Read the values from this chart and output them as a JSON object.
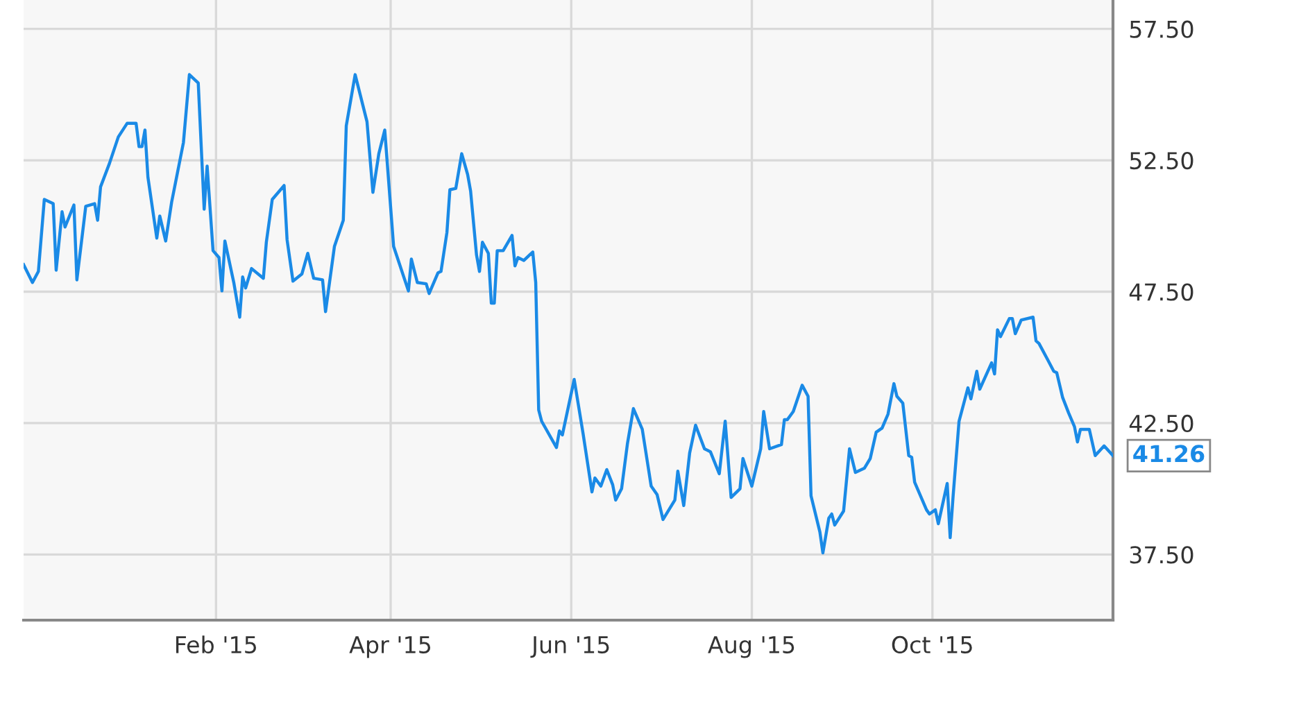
{
  "chart_data": {
    "type": "line",
    "x": [
      "2014-11-28",
      "2014-12-01",
      "2014-12-03",
      "2014-12-05",
      "2014-12-08",
      "2014-12-09",
      "2014-12-11",
      "2014-12-12",
      "2014-12-15",
      "2014-12-16",
      "2014-12-19",
      "2014-12-22",
      "2014-12-23",
      "2014-12-24",
      "2014-12-27",
      "2014-12-30",
      "2015-01-02",
      "2015-01-05",
      "2015-01-06",
      "2015-01-07",
      "2015-01-08",
      "2015-01-09",
      "2015-01-12",
      "2015-01-13",
      "2015-01-15",
      "2015-01-17",
      "2015-01-21",
      "2015-01-23",
      "2015-01-26",
      "2015-01-28",
      "2015-01-29",
      "2015-01-31",
      "2015-02-02",
      "2015-02-03",
      "2015-02-04",
      "2015-02-07",
      "2015-02-09",
      "2015-02-10",
      "2015-02-11",
      "2015-02-13",
      "2015-02-17",
      "2015-02-18",
      "2015-02-20",
      "2015-02-24",
      "2015-02-25",
      "2015-02-27",
      "2015-03-02",
      "2015-03-04",
      "2015-03-06",
      "2015-03-09",
      "2015-03-10",
      "2015-03-13",
      "2015-03-16",
      "2015-03-17",
      "2015-03-20",
      "2015-03-24",
      "2015-03-26",
      "2015-03-28",
      "2015-03-30",
      "2015-04-02",
      "2015-04-07",
      "2015-04-08",
      "2015-04-10",
      "2015-04-13",
      "2015-04-14",
      "2015-04-17",
      "2015-04-18",
      "2015-04-20",
      "2015-04-21",
      "2015-04-23",
      "2015-04-25",
      "2015-04-27",
      "2015-04-28",
      "2015-04-30",
      "2015-05-01",
      "2015-05-02",
      "2015-05-04",
      "2015-05-05",
      "2015-05-06",
      "2015-05-07",
      "2015-05-09",
      "2015-05-12",
      "2015-05-13",
      "2015-05-14",
      "2015-05-16",
      "2015-05-19",
      "2015-05-20",
      "2015-05-21",
      "2015-05-22",
      "2015-05-27",
      "2015-05-28",
      "2015-05-29",
      "2015-06-02",
      "2015-06-05",
      "2015-06-08",
      "2015-06-09",
      "2015-06-11",
      "2015-06-13",
      "2015-06-15",
      "2015-06-16",
      "2015-06-18",
      "2015-06-20",
      "2015-06-22",
      "2015-06-25",
      "2015-06-28",
      "2015-06-30",
      "2015-07-02",
      "2015-07-04",
      "2015-07-06",
      "2015-07-07",
      "2015-07-09",
      "2015-07-11",
      "2015-07-13",
      "2015-07-16",
      "2015-07-18",
      "2015-07-21",
      "2015-07-23",
      "2015-07-25",
      "2015-07-28",
      "2015-07-29",
      "2015-08-01",
      "2015-08-04",
      "2015-08-05",
      "2015-08-07",
      "2015-08-11",
      "2015-08-12",
      "2015-08-13",
      "2015-08-15",
      "2015-08-18",
      "2015-08-20",
      "2015-08-21",
      "2015-08-24",
      "2015-08-25",
      "2015-08-27",
      "2015-08-28",
      "2015-08-29",
      "2015-09-01",
      "2015-09-03",
      "2015-09-05",
      "2015-09-08",
      "2015-09-10",
      "2015-09-12",
      "2015-09-14",
      "2015-09-16",
      "2015-09-18",
      "2015-09-19",
      "2015-09-21",
      "2015-09-23",
      "2015-09-24",
      "2015-09-25",
      "2015-09-29",
      "2015-09-30",
      "2015-10-02",
      "2015-10-03",
      "2015-10-06",
      "2015-10-07",
      "2015-10-08",
      "2015-10-10",
      "2015-10-13",
      "2015-10-14",
      "2015-10-16",
      "2015-10-17",
      "2015-10-21",
      "2015-10-22",
      "2015-10-23",
      "2015-10-24",
      "2015-10-27",
      "2015-10-28",
      "2015-10-29",
      "2015-10-31",
      "2015-11-04",
      "2015-11-05",
      "2015-11-06",
      "2015-11-09",
      "2015-11-11",
      "2015-11-12",
      "2015-11-14",
      "2015-11-16",
      "2015-11-18",
      "2015-11-19",
      "2015-11-20",
      "2015-11-23",
      "2015-11-25",
      "2015-11-28",
      "2015-12-01"
    ],
    "series": [
      {
        "color": "#1a8ae6",
        "values": [
          48.53,
          47.85,
          48.27,
          51.01,
          50.85,
          48.32,
          50.54,
          49.96,
          50.8,
          47.95,
          50.75,
          50.85,
          50.22,
          51.49,
          52.38,
          53.39,
          53.91,
          53.91,
          53.02,
          53.02,
          53.65,
          51.86,
          49.54,
          50.38,
          49.43,
          50.9,
          53.18,
          55.76,
          55.44,
          50.64,
          52.28,
          49.06,
          48.8,
          47.53,
          49.43,
          47.85,
          46.53,
          48.06,
          47.64,
          48.38,
          48.01,
          49.38,
          51.01,
          51.54,
          49.48,
          47.9,
          48.17,
          48.96,
          48.01,
          47.95,
          46.74,
          49.22,
          50.22,
          53.81,
          55.76,
          53.97,
          51.28,
          52.75,
          53.65,
          49.22,
          47.53,
          48.74,
          47.85,
          47.8,
          47.43,
          48.22,
          48.27,
          49.75,
          51.38,
          51.43,
          52.75,
          51.96,
          51.33,
          48.9,
          48.27,
          49.38,
          48.96,
          47.06,
          47.06,
          49.06,
          49.06,
          49.64,
          48.48,
          48.8,
          48.69,
          49.01,
          47.85,
          43.0,
          42.57,
          41.57,
          42.2,
          42.05,
          44.16,
          42.1,
          39.88,
          40.41,
          40.1,
          40.73,
          40.15,
          39.57,
          40.0,
          41.73,
          43.05,
          42.26,
          40.1,
          39.78,
          38.83,
          39.2,
          39.57,
          40.67,
          39.36,
          41.36,
          42.42,
          41.52,
          41.41,
          40.57,
          42.57,
          39.67,
          40.0,
          41.15,
          40.1,
          41.52,
          42.94,
          41.52,
          41.68,
          42.63,
          42.63,
          42.94,
          43.94,
          43.52,
          39.73,
          38.35,
          37.56,
          38.88,
          39.04,
          38.62,
          39.15,
          41.52,
          40.62,
          40.78,
          41.15,
          42.15,
          42.31,
          42.84,
          44.0,
          43.52,
          43.26,
          41.26,
          41.2,
          40.25,
          39.2,
          39.04,
          39.2,
          38.67,
          40.2,
          38.14,
          39.73,
          42.57,
          43.84,
          43.42,
          44.47,
          43.79,
          44.79,
          44.37,
          46.05,
          45.79,
          46.48,
          46.48,
          45.9,
          46.42,
          46.53,
          45.63,
          45.53,
          44.9,
          44.47,
          44.42,
          43.47,
          42.89,
          42.36,
          41.78,
          42.26,
          42.26,
          41.26,
          41.63,
          41.26
        ]
      }
    ],
    "xlim": [
      "2014-11-28",
      "2015-12-01"
    ],
    "xticks": [
      {
        "value": "2015-02-01",
        "label": "Feb '15"
      },
      {
        "value": "2015-04-01",
        "label": "Apr '15"
      },
      {
        "value": "2015-06-01",
        "label": "Jun '15"
      },
      {
        "value": "2015-08-01",
        "label": "Aug '15"
      },
      {
        "value": "2015-10-01",
        "label": "Oct '15"
      }
    ],
    "ylim": [
      35,
      58.6
    ],
    "yticks": [
      {
        "value": 37.5,
        "label": "37.50"
      },
      {
        "value": 42.5,
        "label": "42.50"
      },
      {
        "value": 47.5,
        "label": "47.50"
      },
      {
        "value": 52.5,
        "label": "52.50"
      },
      {
        "value": 57.5,
        "label": "57.50"
      }
    ],
    "grid": true,
    "marker": "none",
    "line_style": "solid",
    "annotations": [
      {
        "text": "41.26",
        "x": "2015-12-01",
        "y": 41.26
      }
    ]
  }
}
